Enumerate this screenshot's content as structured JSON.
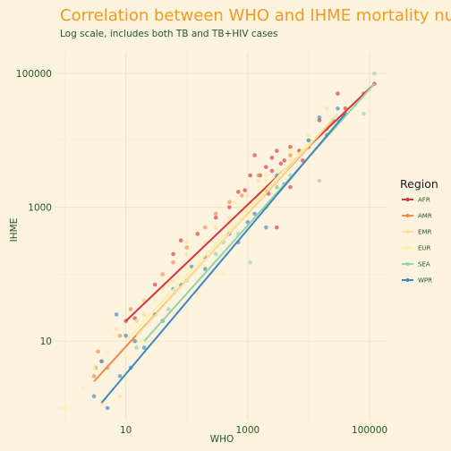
{
  "chart_data": {
    "type": "scatter",
    "title": "Correlation between WHO and IHME mortality numb",
    "subtitle": "Log scale, includes both TB and TB+HIV cases",
    "xlabel": "WHO",
    "ylabel": "IHME",
    "x_scale": "log10",
    "y_scale": "log10",
    "xlim": [
      0.7,
      190000
    ],
    "ylim": [
      0.65,
      210000
    ],
    "x_ticks": [
      10,
      1000,
      100000
    ],
    "x_tick_labels": [
      "10",
      "1000",
      "100000"
    ],
    "y_ticks": [
      10,
      1000,
      100000
    ],
    "y_tick_labels": [
      "10",
      "1000",
      "100000"
    ],
    "grid": true,
    "legend_title": "Region",
    "legend_position": "right",
    "series": [
      {
        "name": "AFR",
        "color": "#d7353b",
        "fit": [
          [
            10,
            20
          ],
          [
            120000,
            70000
          ]
        ],
        "points": [
          [
            10,
            20
          ],
          [
            14,
            22
          ],
          [
            30,
            70
          ],
          [
            60,
            200
          ],
          [
            80,
            320
          ],
          [
            150,
            400
          ],
          [
            300,
            700
          ],
          [
            500,
            1000
          ],
          [
            700,
            1700
          ],
          [
            900,
            1800
          ],
          [
            1100,
            3000
          ],
          [
            1300,
            6000
          ],
          [
            1600,
            3000
          ],
          [
            2000,
            4000
          ],
          [
            2500,
            5500
          ],
          [
            3000,
            7000
          ],
          [
            3500,
            4500
          ],
          [
            5000,
            8000
          ],
          [
            8000,
            5000
          ],
          [
            10000,
            8000
          ],
          [
            15000,
            20000
          ],
          [
            30000,
            50000
          ],
          [
            40000,
            30000
          ],
          [
            80000,
            50000
          ],
          [
            120000,
            70000
          ],
          [
            2000,
            1800
          ],
          [
            2200,
            1600
          ],
          [
            2500,
            3500
          ],
          [
            4000,
            5000
          ],
          [
            5000,
            2000
          ],
          [
            7000,
            7000
          ],
          [
            3000,
            500
          ]
        ]
      },
      {
        "name": "AMR",
        "color": "#f08a4b",
        "fit": [
          [
            3,
            2.5
          ],
          [
            25000,
            20000
          ]
        ],
        "points": [
          [
            3,
            3
          ],
          [
            3.2,
            4
          ],
          [
            3.5,
            7
          ],
          [
            5,
            4
          ],
          [
            8,
            12
          ],
          [
            12,
            30
          ],
          [
            20,
            40
          ],
          [
            40,
            100
          ],
          [
            60,
            150
          ],
          [
            100,
            250
          ],
          [
            200,
            500
          ],
          [
            300,
            800
          ],
          [
            500,
            1200
          ],
          [
            800,
            1500
          ],
          [
            1500,
            3000
          ],
          [
            3000,
            2000
          ],
          [
            5000,
            6000
          ],
          [
            10000,
            8000
          ],
          [
            20000,
            15000
          ],
          [
            4,
            5
          ],
          [
            15,
            20
          ]
        ]
      },
      {
        "name": "EMR",
        "color": "#fde09a",
        "fit": [
          [
            15,
            12
          ],
          [
            30000,
            25000
          ]
        ],
        "points": [
          [
            7,
            15
          ],
          [
            15,
            10
          ],
          [
            20,
            25
          ],
          [
            40,
            60
          ],
          [
            60,
            80
          ],
          [
            100,
            200
          ],
          [
            200,
            300
          ],
          [
            500,
            700
          ],
          [
            800,
            900
          ],
          [
            1000,
            1500
          ],
          [
            2000,
            3000
          ],
          [
            3000,
            2000
          ],
          [
            5000,
            5000
          ],
          [
            10000,
            12000
          ],
          [
            100,
            300
          ],
          [
            300,
            500
          ],
          [
            1500,
            2500
          ],
          [
            20000,
            30000
          ],
          [
            8,
            1.5
          ],
          [
            4,
            1.2
          ]
        ]
      },
      {
        "name": "EUR",
        "color": "#fbf1a8",
        "fit": [
          [
            10,
            10
          ],
          [
            10000,
            9000
          ]
        ],
        "points": [
          [
            1,
            1
          ],
          [
            2,
            2
          ],
          [
            3,
            4
          ],
          [
            5,
            7
          ],
          [
            10,
            12
          ],
          [
            15,
            20
          ],
          [
            20,
            10
          ],
          [
            30,
            40
          ],
          [
            50,
            50
          ],
          [
            70,
            90
          ],
          [
            100,
            120
          ],
          [
            150,
            200
          ],
          [
            200,
            180
          ],
          [
            300,
            250
          ],
          [
            500,
            600
          ],
          [
            700,
            1000
          ],
          [
            1000,
            800
          ],
          [
            1500,
            2000
          ],
          [
            2000,
            2500
          ],
          [
            3000,
            3500
          ],
          [
            5000,
            7000
          ],
          [
            50,
            70
          ],
          [
            80,
            120
          ],
          [
            20,
            40
          ],
          [
            400,
            100
          ],
          [
            150,
            50
          ],
          [
            10,
            6
          ],
          [
            5,
            15
          ],
          [
            600,
            1200
          ]
        ]
      },
      {
        "name": "SEA",
        "color": "#97d3a4",
        "fit": [
          [
            20,
            10
          ],
          [
            120000,
            70000
          ]
        ],
        "points": [
          [
            15,
            8
          ],
          [
            50,
            30
          ],
          [
            100,
            80
          ],
          [
            300,
            200
          ],
          [
            700,
            400
          ],
          [
            1100,
            150
          ],
          [
            1500,
            1500
          ],
          [
            3000,
            2000
          ],
          [
            5000,
            3000
          ],
          [
            10000,
            10000
          ],
          [
            15000,
            2500
          ],
          [
            20000,
            15000
          ],
          [
            30000,
            20000
          ],
          [
            80000,
            25000
          ],
          [
            120000,
            100000
          ],
          [
            400,
            300
          ],
          [
            2000,
            1000
          ]
        ]
      },
      {
        "name": "WPR",
        "color": "#3f87bd",
        "fit": [
          [
            4,
            1.2
          ],
          [
            40000,
            25000
          ]
        ],
        "points": [
          [
            3,
            1.5
          ],
          [
            4,
            5
          ],
          [
            5,
            1
          ],
          [
            7,
            25
          ],
          [
            10,
            12
          ],
          [
            12,
            4
          ],
          [
            14,
            10
          ],
          [
            20,
            8
          ],
          [
            30,
            25
          ],
          [
            40,
            20
          ],
          [
            80,
            70
          ],
          [
            120,
            130
          ],
          [
            200,
            180
          ],
          [
            500,
            400
          ],
          [
            700,
            300
          ],
          [
            1000,
            600
          ],
          [
            1300,
            800
          ],
          [
            2000,
            500
          ],
          [
            3000,
            3000
          ],
          [
            4000,
            2200
          ],
          [
            6000,
            5000
          ],
          [
            10000,
            10000
          ],
          [
            15000,
            22000
          ],
          [
            20000,
            12000
          ],
          [
            25000,
            20000
          ],
          [
            30000,
            30000
          ],
          [
            40000,
            25000
          ],
          [
            8,
            3
          ],
          [
            60,
            60
          ],
          [
            200,
            120
          ]
        ]
      }
    ]
  }
}
